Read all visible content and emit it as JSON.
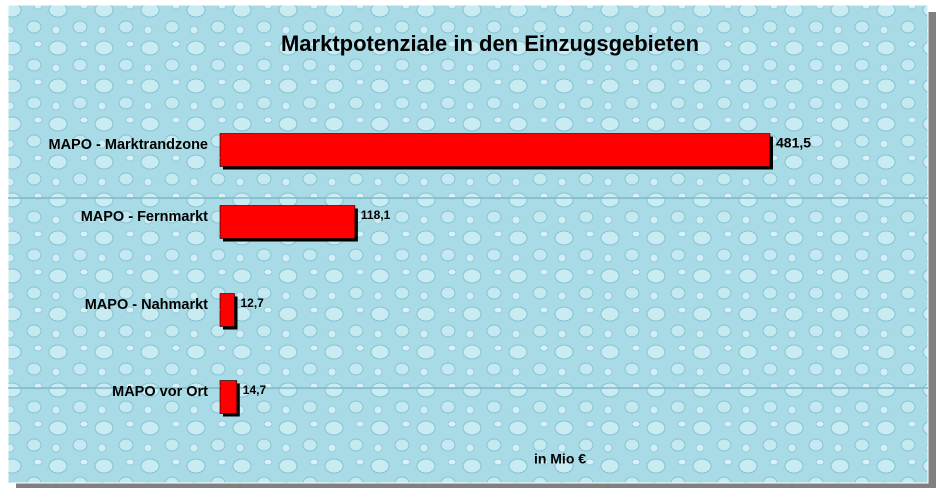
{
  "chart_data": {
    "type": "bar",
    "orientation": "horizontal",
    "title": "Marktpotenziale in den Einzugsgebieten",
    "x_label": "in Mio €",
    "categories": [
      "MAPO - Marktrandzone",
      "MAPO - Fernmarkt",
      "MAPO - Nahmarkt",
      "MAPO vor Ort"
    ],
    "values": [
      481.5,
      118.1,
      12.7,
      14.7
    ],
    "value_labels": [
      "481,5",
      "118,1",
      "12,7",
      "14,7"
    ],
    "color": "#ff0000"
  }
}
